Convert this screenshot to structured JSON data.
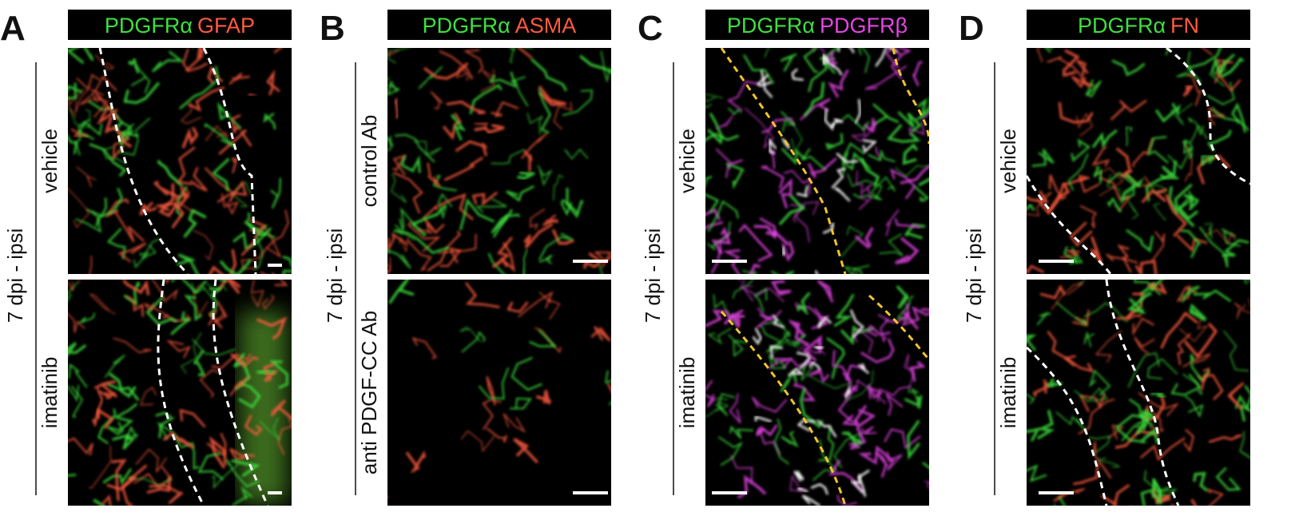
{
  "panels": [
    {
      "letter": "A",
      "header": [
        {
          "text": "PDGFRα",
          "color": "#3ee03e"
        },
        {
          "text": "GFAP",
          "color": "#ff5b3f"
        }
      ],
      "side_label": "7 dpi - ipsi",
      "rows": [
        "vehicle",
        "imatinib"
      ]
    },
    {
      "letter": "B",
      "header": [
        {
          "text": "PDGFRα",
          "color": "#3ee03e"
        },
        {
          "text": "ASMA",
          "color": "#ff5b3f"
        }
      ],
      "side_label": "7 dpi - ipsi",
      "rows": [
        "control Ab",
        "anti PDGF-CC Ab"
      ]
    },
    {
      "letter": "C",
      "header": [
        {
          "text": "PDGFRα",
          "color": "#3ee03e"
        },
        {
          "text": "PDGFRβ",
          "color": "#e545e5"
        }
      ],
      "side_label": "7 dpi - ipsi",
      "rows": [
        "vehicle",
        "imatinib"
      ]
    },
    {
      "letter": "D",
      "header": [
        {
          "text": "PDGFRα",
          "color": "#3ee03e"
        },
        {
          "text": "FN",
          "color": "#ff5b3f"
        }
      ],
      "side_label": "7 dpi - ipsi",
      "rows": [
        "vehicle",
        "imatinib"
      ]
    }
  ]
}
